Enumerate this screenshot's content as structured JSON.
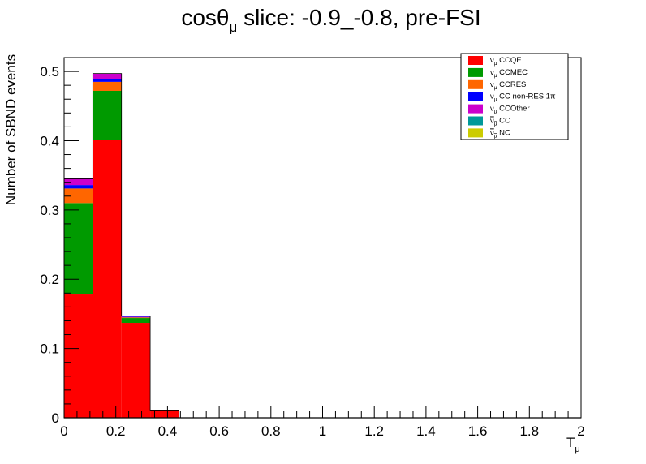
{
  "chart_data": {
    "type": "bar",
    "stacked": true,
    "title_main": "cosθ",
    "title_sub": "μ",
    "title_rest": " slice: -0.9_-0.8, pre-FSI",
    "xlabel_main": "T",
    "xlabel_sub": "μ",
    "ylabel": "Number of SBND events",
    "xlim": [
      0,
      2
    ],
    "ylim": [
      0,
      0.52
    ],
    "x_ticks": [
      "0",
      "0.2",
      "0.4",
      "0.6",
      "0.8",
      "1",
      "1.2",
      "1.4",
      "1.6",
      "1.8",
      "2"
    ],
    "y_ticks": [
      "0",
      "0.1",
      "0.2",
      "0.3",
      "0.4",
      "0.5"
    ],
    "bin_edges": [
      0,
      0.111,
      0.222,
      0.333,
      0.444
    ],
    "series": [
      {
        "name_nu": "ν",
        "name_sub": "μ",
        "name_rest": " CCQE",
        "bar": false,
        "color": "#ff0000",
        "values": [
          0.178,
          0.401,
          0.137,
          0.01
        ]
      },
      {
        "name_nu": "ν",
        "name_sub": "μ",
        "name_rest": " CCMEC",
        "bar": false,
        "color": "#009a00",
        "values": [
          0.132,
          0.071,
          0.007,
          0.0
        ]
      },
      {
        "name_nu": "ν",
        "name_sub": "μ",
        "name_rest": " CCRES",
        "bar": false,
        "color": "#ff6600",
        "values": [
          0.021,
          0.013,
          0.001,
          0.0
        ]
      },
      {
        "name_nu": "ν",
        "name_sub": "μ",
        "name_rest": " CC non-RES 1π",
        "bar": false,
        "color": "#0000ff",
        "values": [
          0.005,
          0.004,
          0.001,
          0.0
        ]
      },
      {
        "name_nu": "ν",
        "name_sub": "μ",
        "name_rest": " CCOther",
        "bar": false,
        "color": "#cc00cc",
        "values": [
          0.009,
          0.008,
          0.001,
          0.0
        ]
      },
      {
        "name_nu": "ν",
        "name_sub": "μ",
        "name_rest": " CC",
        "bar": true,
        "color": "#009999",
        "values": [
          0.0,
          0.0,
          0.0,
          0.0
        ]
      },
      {
        "name_nu": "ν",
        "name_sub": "μ",
        "name_rest": " NC",
        "bar": true,
        "color": "#cccc00",
        "values": [
          0.0,
          0.0,
          0.0,
          0.0
        ]
      }
    ],
    "legend_position": "top-right",
    "grid": false
  }
}
